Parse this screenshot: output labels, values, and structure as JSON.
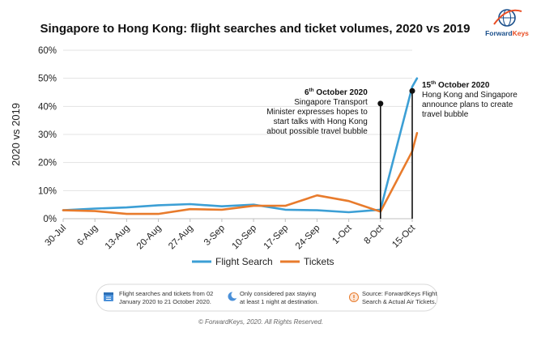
{
  "brand": {
    "name_part1": "Forward",
    "name_part2": "Keys",
    "color_dark": "#1a4f8b",
    "color_light": "#e94e24"
  },
  "footer": {
    "notes": [
      {
        "icon": "calendar-icon",
        "lines": [
          "Flight searches and tickets from 02",
          "January 2020 to 21 October 2020."
        ]
      },
      {
        "icon": "moon-icon",
        "lines": [
          "Only considered pax staying",
          "at least 1 night at destination."
        ]
      },
      {
        "icon": "info-icon",
        "lines": [
          "Source: ForwardKeys Flight",
          "Search & Actual Air Tickets."
        ]
      }
    ],
    "copyright": "© ForwardKeys, 2020. All Rights Reserved."
  },
  "chart_data": {
    "type": "line",
    "title": "Singapore to Hong Kong: flight searches and ticket volumes, 2020 vs 2019",
    "ylabel": "2020 vs 2019",
    "xlabel": "",
    "ylim": [
      0,
      60
    ],
    "yticks": [
      0,
      10,
      20,
      30,
      40,
      50,
      60
    ],
    "ytick_labels": [
      "0%",
      "10%",
      "20%",
      "30%",
      "40%",
      "50%",
      "60%"
    ],
    "grid": "horizontal",
    "legend": "bottom",
    "x_labels": [
      "30-Jul",
      "6-Aug",
      "13-Aug",
      "20-Aug",
      "27-Aug",
      "3-Sep",
      "10-Sep",
      "17-Sep",
      "24-Sep",
      "1-Oct",
      "8-Oct",
      "15-Oct"
    ],
    "series": [
      {
        "name": "Flight Search",
        "color": "#3c9fd5",
        "points": [
          [
            0,
            3.0
          ],
          [
            1,
            3.6
          ],
          [
            2,
            4.0
          ],
          [
            3,
            4.8
          ],
          [
            4,
            5.2
          ],
          [
            5,
            4.4
          ],
          [
            6,
            5.0
          ],
          [
            7,
            3.2
          ],
          [
            8,
            3.0
          ],
          [
            9,
            2.3
          ],
          [
            10,
            3.2
          ],
          [
            11,
            47.0
          ],
          [
            11.15,
            50.0
          ]
        ]
      },
      {
        "name": "Tickets",
        "color": "#e87b2c",
        "points": [
          [
            0,
            3.0
          ],
          [
            1,
            2.7
          ],
          [
            2,
            1.7
          ],
          [
            3,
            1.7
          ],
          [
            4,
            3.4
          ],
          [
            5,
            3.2
          ],
          [
            6,
            4.6
          ],
          [
            7,
            4.6
          ],
          [
            8,
            8.3
          ],
          [
            9,
            6.3
          ],
          [
            10,
            2.5
          ],
          [
            11,
            24.0
          ],
          [
            11.15,
            30.5
          ]
        ]
      }
    ],
    "annotations": [
      {
        "x": 10,
        "y": 41,
        "date_day": "6",
        "date_suffix": "th",
        "date_rest": " October 2020",
        "lines": [
          "Singapore Transport",
          "Minister expresses hopes to",
          "start talks with Hong Kong",
          "about possible travel bubble"
        ],
        "align": "right"
      },
      {
        "x": 11,
        "y": 45.5,
        "date_day": "15",
        "date_suffix": "th",
        "date_rest": " October 2020",
        "lines": [
          "Hong Kong and Singapore",
          "announce plans to create",
          "travel bubble"
        ],
        "align": "left"
      }
    ]
  }
}
